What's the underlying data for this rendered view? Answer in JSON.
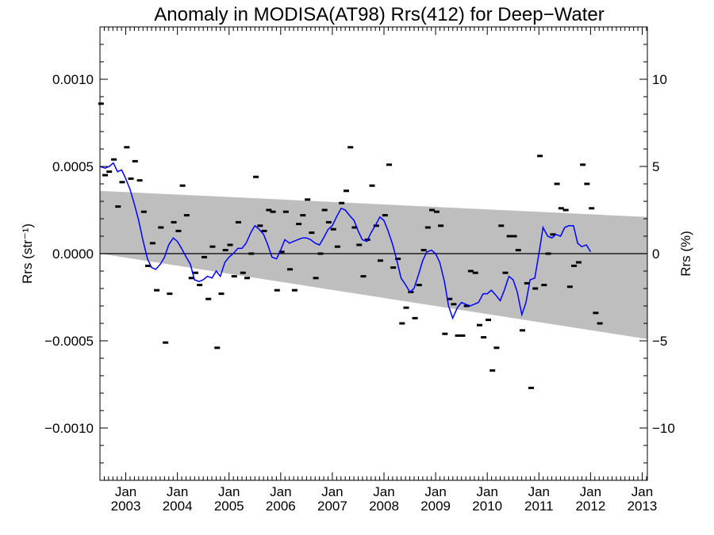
{
  "chart_data": {
    "type": "scatter",
    "title": "Anomaly in MODISA(AT98) Rrs(412) for Deep−Water",
    "ylabel_left": "Rrs (str⁻¹)",
    "ylabel_right": "Rrs (%)",
    "xlim": [
      2002.5,
      2013.1
    ],
    "ylim_left": [
      -0.0013,
      0.0013
    ],
    "ylim_right": [
      -13,
      13
    ],
    "x_ticks": [
      {
        "x": 2003.0,
        "top": "Jan",
        "bottom": "2003"
      },
      {
        "x": 2004.0,
        "top": "Jan",
        "bottom": "2004"
      },
      {
        "x": 2005.0,
        "top": "Jan",
        "bottom": "2005"
      },
      {
        "x": 2006.0,
        "top": "Jan",
        "bottom": "2006"
      },
      {
        "x": 2007.0,
        "top": "Jan",
        "bottom": "2007"
      },
      {
        "x": 2008.0,
        "top": "Jan",
        "bottom": "2008"
      },
      {
        "x": 2009.0,
        "top": "Jan",
        "bottom": "2009"
      },
      {
        "x": 2010.0,
        "top": "Jan",
        "bottom": "2010"
      },
      {
        "x": 2011.0,
        "top": "Jan",
        "bottom": "2011"
      },
      {
        "x": 2012.0,
        "top": "Jan",
        "bottom": "2012"
      },
      {
        "x": 2013.0,
        "top": "Jan",
        "bottom": "2013"
      }
    ],
    "y_ticks_left": [
      {
        "v": 0.001,
        "label": "0.0010"
      },
      {
        "v": 0.0005,
        "label": "0.0005"
      },
      {
        "v": 0.0,
        "label": "0.0000"
      },
      {
        "v": -0.0005,
        "label": "−0.0005"
      },
      {
        "v": -0.001,
        "label": "−0.0010"
      }
    ],
    "y_ticks_right": [
      {
        "v": 10,
        "label": "10"
      },
      {
        "v": 5,
        "label": "5"
      },
      {
        "v": 0,
        "label": "0"
      },
      {
        "v": -5,
        "label": "−5"
      },
      {
        "v": -10,
        "label": "−10"
      }
    ],
    "grid": false,
    "zero_line": 0,
    "band": {
      "upper": [
        [
          2002.5,
          0.00036
        ],
        [
          2013.1,
          0.00021
        ]
      ],
      "lower": [
        [
          2002.5,
          0.0
        ],
        [
          2013.1,
          -0.00049
        ]
      ]
    },
    "series": [
      {
        "kind": "monthly_anomaly_points",
        "points": [
          [
            2002.52,
            0.00086
          ],
          [
            2002.6,
            0.00045
          ],
          [
            2002.68,
            0.00047
          ],
          [
            2002.77,
            0.00054
          ],
          [
            2002.85,
            0.00027
          ],
          [
            2002.93,
            0.00041
          ],
          [
            2003.02,
            0.00061
          ],
          [
            2003.1,
            0.00043
          ],
          [
            2003.18,
            0.00053
          ],
          [
            2003.27,
            0.00042
          ],
          [
            2003.35,
            0.00024
          ],
          [
            2003.43,
            -7e-05
          ],
          [
            2003.52,
            6e-05
          ],
          [
            2003.6,
            -0.00021
          ],
          [
            2003.68,
            0.00015
          ],
          [
            2003.77,
            -0.00051
          ],
          [
            2003.85,
            -0.00023
          ],
          [
            2003.93,
            0.00018
          ],
          [
            2004.02,
            0.00013
          ],
          [
            2004.1,
            0.00039
          ],
          [
            2004.18,
            0.00022
          ],
          [
            2004.27,
            -0.00014
          ],
          [
            2004.35,
            -0.00011
          ],
          [
            2004.43,
            -0.00018
          ],
          [
            2004.52,
            -2e-05
          ],
          [
            2004.6,
            -0.00026
          ],
          [
            2004.68,
            4e-05
          ],
          [
            2004.77,
            -0.00054
          ],
          [
            2004.85,
            -0.00023
          ],
          [
            2004.93,
            2e-05
          ],
          [
            2005.02,
            5e-05
          ],
          [
            2005.1,
            -0.00013
          ],
          [
            2005.18,
            0.00018
          ],
          [
            2005.27,
            -0.00011
          ],
          [
            2005.35,
            -0.00014
          ],
          [
            2005.43,
            0.0
          ],
          [
            2005.52,
            0.00044
          ],
          [
            2005.6,
            0.00016
          ],
          [
            2005.68,
            0.00013
          ],
          [
            2005.77,
            0.00025
          ],
          [
            2005.85,
            0.00024
          ],
          [
            2005.93,
            -0.00021
          ],
          [
            2006.02,
            1e-05
          ],
          [
            2006.1,
            0.00024
          ],
          [
            2006.18,
            -9e-05
          ],
          [
            2006.27,
            -0.00021
          ],
          [
            2006.35,
            0.00017
          ],
          [
            2006.43,
            0.00022
          ],
          [
            2006.52,
            0.00031
          ],
          [
            2006.6,
            0.00012
          ],
          [
            2006.68,
            -0.00014
          ],
          [
            2006.77,
            0.0
          ],
          [
            2006.85,
            0.00025
          ],
          [
            2006.93,
            0.00018
          ],
          [
            2007.02,
            0.00014
          ],
          [
            2007.1,
            4e-05
          ],
          [
            2007.18,
            0.00029
          ],
          [
            2007.27,
            0.00036
          ],
          [
            2007.35,
            0.00061
          ],
          [
            2007.43,
            0.00015
          ],
          [
            2007.52,
            5e-05
          ],
          [
            2007.6,
            -0.00013
          ],
          [
            2007.68,
            8e-05
          ],
          [
            2007.77,
            0.00039
          ],
          [
            2007.85,
            0.00016
          ],
          [
            2007.93,
            -4e-05
          ],
          [
            2008.02,
            0.00022
          ],
          [
            2008.1,
            0.00051
          ],
          [
            2008.18,
            -8e-05
          ],
          [
            2008.27,
            -3e-05
          ],
          [
            2008.35,
            -0.0004
          ],
          [
            2008.43,
            -0.00031
          ],
          [
            2008.52,
            -0.00022
          ],
          [
            2008.6,
            -0.00037
          ],
          [
            2008.68,
            -0.00018
          ],
          [
            2008.77,
            2e-05
          ],
          [
            2008.85,
            0.00015
          ],
          [
            2008.93,
            0.00025
          ],
          [
            2009.02,
            0.00024
          ],
          [
            2009.1,
            0.00016
          ],
          [
            2009.18,
            -0.00046
          ],
          [
            2009.27,
            -0.00026
          ],
          [
            2009.35,
            -0.00029
          ],
          [
            2009.43,
            -0.00047
          ],
          [
            2009.52,
            -0.00047
          ],
          [
            2009.6,
            -0.0003
          ],
          [
            2009.68,
            -0.0001
          ],
          [
            2009.77,
            -0.00011
          ],
          [
            2009.85,
            -0.00041
          ],
          [
            2009.93,
            -0.00048
          ],
          [
            2010.02,
            -0.00038
          ],
          [
            2010.1,
            -0.00067
          ],
          [
            2010.18,
            -0.00054
          ],
          [
            2010.27,
            0.00016
          ],
          [
            2010.35,
            -0.00011
          ],
          [
            2010.43,
            0.0001
          ],
          [
            2010.52,
            0.0001
          ],
          [
            2010.6,
            2e-05
          ],
          [
            2010.68,
            -0.00044
          ],
          [
            2010.77,
            -0.00017
          ],
          [
            2010.85,
            -0.00077
          ],
          [
            2010.93,
            -0.0002
          ],
          [
            2011.02,
            0.00056
          ],
          [
            2011.1,
            -0.00018
          ],
          [
            2011.18,
            0.0
          ],
          [
            2011.27,
            0.00011
          ],
          [
            2011.35,
            0.0004
          ],
          [
            2011.43,
            0.00026
          ],
          [
            2011.52,
            0.00025
          ],
          [
            2011.6,
            -0.00019
          ],
          [
            2011.68,
            -7e-05
          ],
          [
            2011.77,
            -5e-05
          ],
          [
            2011.85,
            0.00051
          ],
          [
            2011.93,
            0.0004
          ],
          [
            2012.02,
            0.00026
          ],
          [
            2012.1,
            -0.00034
          ],
          [
            2012.18,
            -0.0004
          ]
        ]
      },
      {
        "kind": "running_mean_line",
        "color": "#0000ff",
        "points": [
          [
            2002.5,
            0.0005
          ],
          [
            2002.6,
            0.00049
          ],
          [
            2002.68,
            0.0005
          ],
          [
            2002.76,
            0.00052
          ],
          [
            2002.84,
            0.00047
          ],
          [
            2002.92,
            0.00048
          ],
          [
            2003.0,
            0.00043
          ],
          [
            2003.08,
            0.00037
          ],
          [
            2003.17,
            0.00028
          ],
          [
            2003.25,
            0.00019
          ],
          [
            2003.33,
            8e-05
          ],
          [
            2003.42,
            -3e-05
          ],
          [
            2003.5,
            -8e-05
          ],
          [
            2003.58,
            -9e-05
          ],
          [
            2003.67,
            -6e-05
          ],
          [
            2003.75,
            -2e-05
          ],
          [
            2003.83,
            5e-05
          ],
          [
            2003.92,
            9e-05
          ],
          [
            2004.0,
            7e-05
          ],
          [
            2004.08,
            3e-05
          ],
          [
            2004.17,
            -2e-05
          ],
          [
            2004.25,
            -6e-05
          ],
          [
            2004.33,
            -0.00015
          ],
          [
            2004.42,
            -0.00016
          ],
          [
            2004.5,
            -0.00015
          ],
          [
            2004.58,
            -0.00013
          ],
          [
            2004.67,
            -0.00014
          ],
          [
            2004.75,
            -0.0001
          ],
          [
            2004.83,
            -0.00013
          ],
          [
            2004.92,
            -5e-05
          ],
          [
            2005.0,
            -2e-05
          ],
          [
            2005.08,
            0.0
          ],
          [
            2005.17,
            3e-05
          ],
          [
            2005.25,
            3e-05
          ],
          [
            2005.33,
            6e-05
          ],
          [
            2005.42,
            0.00012
          ],
          [
            2005.5,
            0.00016
          ],
          [
            2005.58,
            0.00014
          ],
          [
            2005.67,
            0.00011
          ],
          [
            2005.75,
            5e-05
          ],
          [
            2005.83,
            -2e-05
          ],
          [
            2005.92,
            -3e-05
          ],
          [
            2006.0,
            2e-05
          ],
          [
            2006.08,
            8e-05
          ],
          [
            2006.17,
            6e-05
          ],
          [
            2006.25,
            7e-05
          ],
          [
            2006.33,
            8e-05
          ],
          [
            2006.42,
            9e-05
          ],
          [
            2006.5,
            9e-05
          ],
          [
            2006.58,
            8e-05
          ],
          [
            2006.67,
            6e-05
          ],
          [
            2006.75,
            5e-05
          ],
          [
            2006.83,
            9e-05
          ],
          [
            2006.92,
            0.00014
          ],
          [
            2007.0,
            0.00016
          ],
          [
            2007.08,
            0.00021
          ],
          [
            2007.17,
            0.00026
          ],
          [
            2007.25,
            0.00025
          ],
          [
            2007.33,
            0.00022
          ],
          [
            2007.42,
            0.00019
          ],
          [
            2007.5,
            0.00013
          ],
          [
            2007.58,
            8e-05
          ],
          [
            2007.67,
            7e-05
          ],
          [
            2007.75,
            0.00012
          ],
          [
            2007.83,
            0.00016
          ],
          [
            2007.92,
            0.00021
          ],
          [
            2008.0,
            0.00019
          ],
          [
            2008.08,
            0.00013
          ],
          [
            2008.17,
            5e-05
          ],
          [
            2008.25,
            -4e-05
          ],
          [
            2008.33,
            -0.00014
          ],
          [
            2008.42,
            -0.00018
          ],
          [
            2008.5,
            -0.00022
          ],
          [
            2008.58,
            -0.0002
          ],
          [
            2008.67,
            -0.00012
          ],
          [
            2008.75,
            -4e-05
          ],
          [
            2008.83,
            1e-05
          ],
          [
            2008.92,
            2e-05
          ],
          [
            2009.0,
            0.0
          ],
          [
            2009.08,
            -5e-05
          ],
          [
            2009.17,
            -0.00016
          ],
          [
            2009.25,
            -0.0003
          ],
          [
            2009.33,
            -0.00037
          ],
          [
            2009.42,
            -0.00031
          ],
          [
            2009.5,
            -0.00028
          ],
          [
            2009.58,
            -0.00029
          ],
          [
            2009.67,
            -0.0003
          ],
          [
            2009.75,
            -0.00029
          ],
          [
            2009.83,
            -0.00028
          ],
          [
            2009.92,
            -0.00023
          ],
          [
            2010.0,
            -0.00023
          ],
          [
            2010.08,
            -0.00021
          ],
          [
            2010.17,
            -0.00024
          ],
          [
            2010.25,
            -0.00027
          ],
          [
            2010.33,
            -0.00021
          ],
          [
            2010.42,
            -0.00013
          ],
          [
            2010.5,
            -0.00015
          ],
          [
            2010.58,
            -0.00022
          ],
          [
            2010.67,
            -0.00035
          ],
          [
            2010.75,
            -0.00028
          ],
          [
            2010.83,
            -0.00015
          ],
          [
            2010.92,
            -0.00014
          ],
          [
            2011.0,
            0.0
          ],
          [
            2011.08,
            0.00015
          ],
          [
            2011.17,
            0.0001
          ],
          [
            2011.25,
            9e-05
          ],
          [
            2011.33,
            0.00011
          ],
          [
            2011.42,
            0.0001
          ],
          [
            2011.5,
            0.00015
          ],
          [
            2011.58,
            0.00016
          ],
          [
            2011.67,
            0.00016
          ],
          [
            2011.75,
            6e-05
          ],
          [
            2011.83,
            4e-05
          ],
          [
            2011.92,
            5e-05
          ],
          [
            2012.0,
            1e-05
          ]
        ]
      }
    ]
  }
}
